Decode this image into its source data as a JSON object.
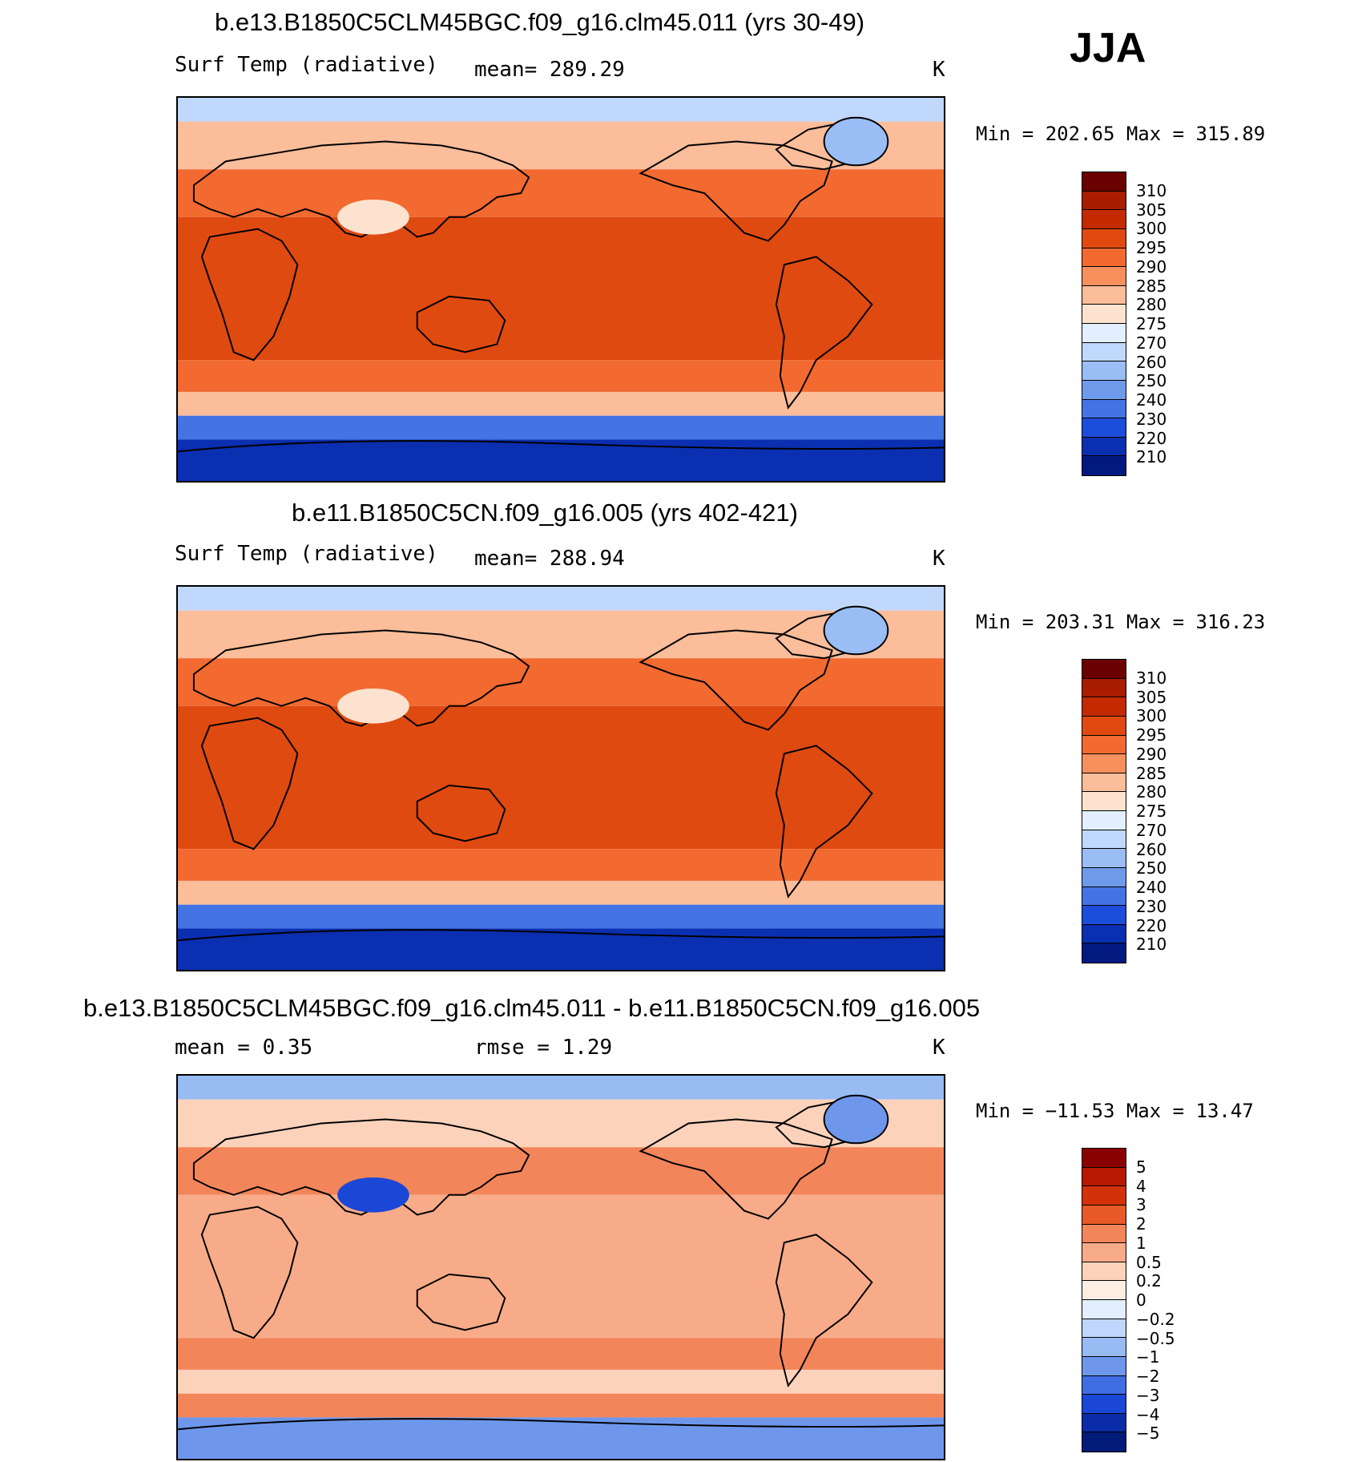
{
  "season": "JJA",
  "panels": [
    {
      "title": "b.e13.B1850C5CLM45BGC.f09_g16.clm45.011 (yrs 30-49)",
      "variable": "Surf Temp (radiative)",
      "stat": "mean= 289.29",
      "units": "K",
      "minmax": "Min = 202.65 Max = 315.89",
      "colorbar_labels": [
        "310",
        "305",
        "300",
        "295",
        "290",
        "285",
        "280",
        "275",
        "270",
        "260",
        "250",
        "240",
        "230",
        "220",
        "210"
      ],
      "colorbar_colors": [
        "#6b0000",
        "#a81c00",
        "#c42a00",
        "#e04a10",
        "#f26a30",
        "#f8905e",
        "#fbbd9a",
        "#fde3cf",
        "#e3efff",
        "#c0d8fb",
        "#99bdf4",
        "#6f9aec",
        "#4474e4",
        "#1d4edb",
        "#0a2fb0",
        "#021a80"
      ],
      "map_colors": {
        "ocean_tropics": "#df4a10",
        "ocean_mid": "#f26a30",
        "ocean_high": "#fbbd9a",
        "arctic": "#c0d8fb",
        "southern": "#4474e4",
        "antarctic": "#0a2fb0",
        "tibet": "#fde3cf",
        "greenland": "#99bdf4"
      }
    },
    {
      "title": "b.e11.B1850C5CN.f09_g16.005 (yrs 402-421)",
      "variable": "Surf Temp (radiative)",
      "stat": "mean= 288.94",
      "units": "K",
      "minmax": "Min = 203.31 Max = 316.23",
      "colorbar_labels": [
        "310",
        "305",
        "300",
        "295",
        "290",
        "285",
        "280",
        "275",
        "270",
        "260",
        "250",
        "240",
        "230",
        "220",
        "210"
      ],
      "colorbar_colors": [
        "#6b0000",
        "#a81c00",
        "#c42a00",
        "#e04a10",
        "#f26a30",
        "#f8905e",
        "#fbbd9a",
        "#fde3cf",
        "#e3efff",
        "#c0d8fb",
        "#99bdf4",
        "#6f9aec",
        "#4474e4",
        "#1d4edb",
        "#0a2fb0",
        "#021a80"
      ],
      "map_colors": {
        "ocean_tropics": "#df4a10",
        "ocean_mid": "#f26a30",
        "ocean_high": "#fbbd9a",
        "arctic": "#c0d8fb",
        "southern": "#4474e4",
        "antarctic": "#0a2fb0",
        "tibet": "#fde3cf",
        "greenland": "#99bdf4"
      }
    },
    {
      "title": "b.e13.B1850C5CLM45BGC.f09_g16.clm45.011 - b.e11.B1850C5CN.f09_g16.005",
      "stat": "mean =    0.35",
      "stat2": "rmse =    1.29",
      "units": "K",
      "minmax": "Min = −11.53 Max =   13.47",
      "colorbar_labels": [
        "5",
        "4",
        "3",
        "2",
        "1",
        "0.5",
        "0.2",
        "0",
        "−0.2",
        "−0.5",
        "−1",
        "−2",
        "−3",
        "−4",
        "−5"
      ],
      "colorbar_colors": [
        "#8b0000",
        "#b81800",
        "#d33208",
        "#e85a28",
        "#f3855a",
        "#f8ab88",
        "#fcd2bb",
        "#fdeee3",
        "#e3eeff",
        "#c0d6fb",
        "#99bbf4",
        "#6e97ec",
        "#3f6de2",
        "#1a47d6",
        "#0a2ca8",
        "#021a78"
      ],
      "map_colors": {
        "ocean_tropics": "#f8ab88",
        "ocean_mid": "#f3855a",
        "ocean_high": "#fcd2bb",
        "arctic": "#99bbf4",
        "southern": "#f3855a",
        "antarctic": "#6e97ec",
        "tibet": "#1a47d6",
        "greenland": "#6e97ec"
      }
    }
  ]
}
